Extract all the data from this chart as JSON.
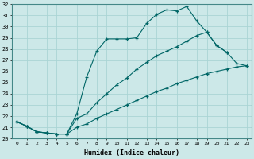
{
  "xlabel": "Humidex (Indice chaleur)",
  "bg_color": "#cce8e8",
  "line_color": "#006666",
  "grid_color": "#b0d8d8",
  "xlim": [
    -0.5,
    23.5
  ],
  "ylim": [
    20,
    32
  ],
  "xticks": [
    0,
    1,
    2,
    3,
    4,
    5,
    6,
    7,
    8,
    9,
    10,
    11,
    12,
    13,
    14,
    15,
    16,
    17,
    18,
    19,
    20,
    21,
    22,
    23
  ],
  "yticks": [
    20,
    21,
    22,
    23,
    24,
    25,
    26,
    27,
    28,
    29,
    30,
    31,
    32
  ],
  "line1_x": [
    0,
    1,
    2,
    3,
    4,
    5,
    6,
    7,
    8,
    9,
    10,
    11,
    12,
    13,
    14,
    15,
    16,
    17,
    18,
    19,
    20,
    21
  ],
  "line1_y": [
    21.5,
    21.1,
    20.6,
    20.5,
    20.4,
    20.4,
    22.2,
    25.5,
    27.8,
    28.9,
    28.9,
    28.9,
    29.0,
    30.3,
    31.1,
    31.5,
    31.4,
    31.8,
    30.5,
    29.5,
    28.3,
    27.7
  ],
  "line2_x": [
    0,
    1,
    2,
    3,
    4,
    5,
    6,
    7,
    8,
    9,
    10,
    11,
    12,
    13,
    14,
    15,
    16,
    17,
    18,
    19,
    20,
    21,
    22,
    23
  ],
  "line2_y": [
    21.5,
    21.1,
    20.6,
    20.5,
    20.4,
    20.4,
    21.8,
    22.2,
    23.2,
    24.0,
    24.8,
    25.4,
    26.2,
    26.8,
    27.4,
    27.8,
    28.2,
    28.7,
    29.2,
    29.5,
    28.3,
    27.7,
    26.7,
    26.5
  ],
  "line3_x": [
    0,
    1,
    2,
    3,
    4,
    5,
    6,
    7,
    8,
    9,
    10,
    11,
    12,
    13,
    14,
    15,
    16,
    17,
    18,
    19,
    20,
    21,
    22,
    23
  ],
  "line3_y": [
    21.5,
    21.1,
    20.6,
    20.5,
    20.4,
    20.4,
    21.0,
    21.3,
    21.8,
    22.2,
    22.6,
    23.0,
    23.4,
    23.8,
    24.2,
    24.5,
    24.9,
    25.2,
    25.5,
    25.8,
    26.0,
    26.2,
    26.4,
    26.5
  ]
}
